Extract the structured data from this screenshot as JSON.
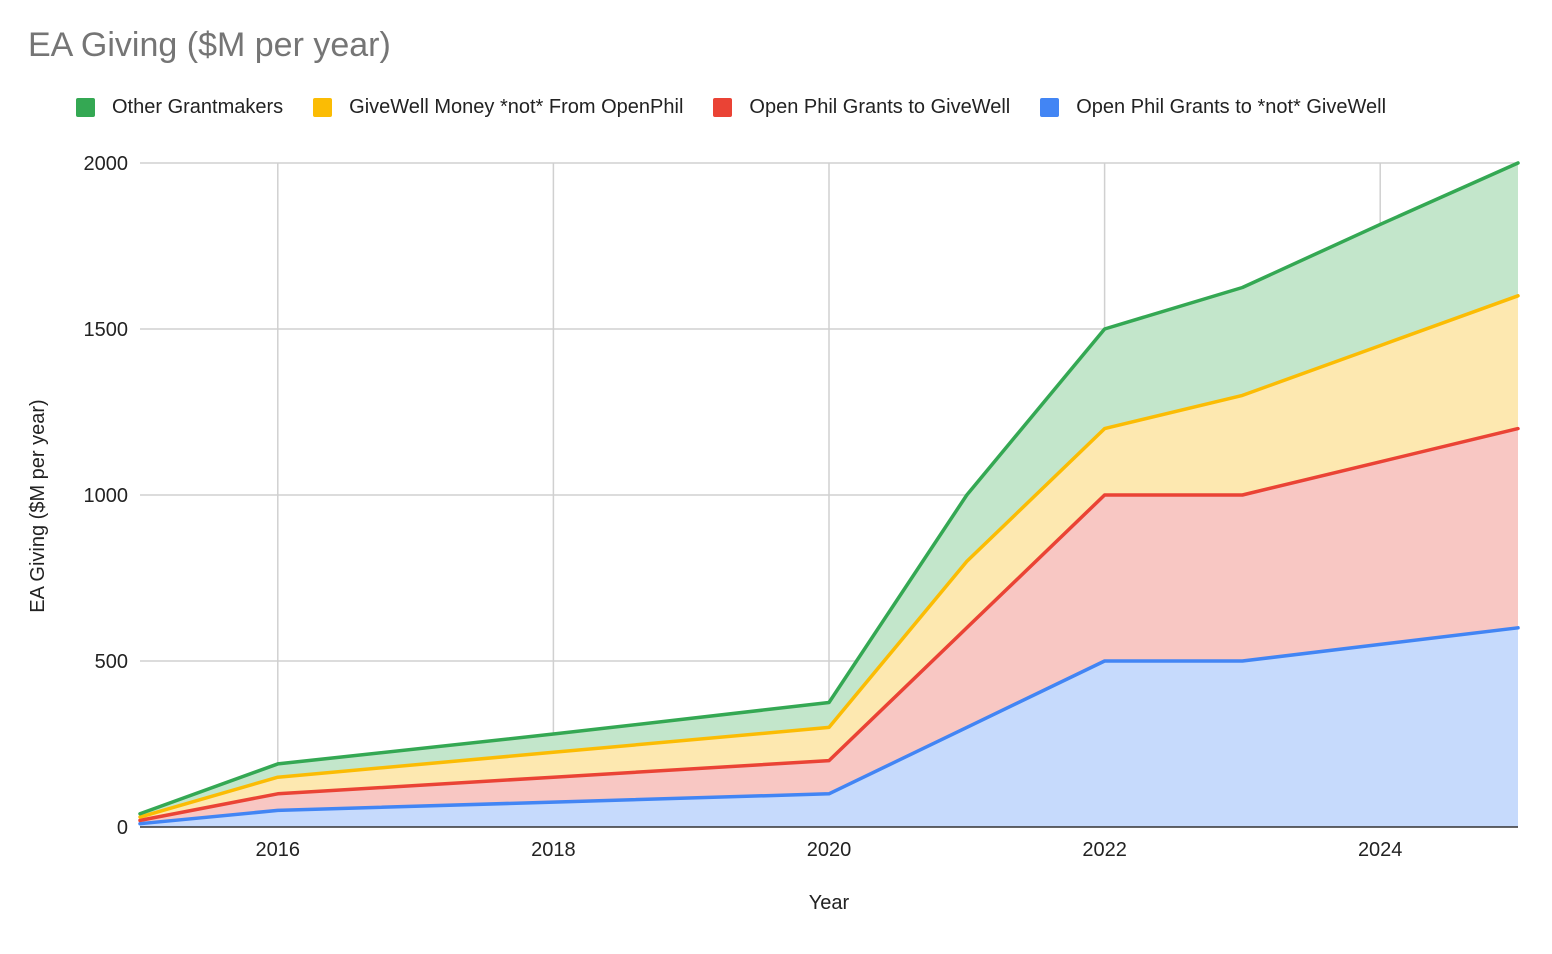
{
  "chart_data": {
    "type": "area",
    "stacked": true,
    "title": "EA Giving ($M per year)",
    "xlabel": "Year",
    "ylabel": "EA Giving ($M per year)",
    "xlim": [
      2015,
      2025
    ],
    "ylim": [
      0,
      2000
    ],
    "x_ticks": [
      2016,
      2018,
      2020,
      2022,
      2024
    ],
    "y_ticks": [
      0,
      500,
      1000,
      1500,
      2000
    ],
    "grid": true,
    "legend_position": "top",
    "x": [
      2015,
      2016,
      2018,
      2020,
      2021,
      2022,
      2023,
      2024,
      2025
    ],
    "series": [
      {
        "name": "Open Phil Grants to *not* GiveWell",
        "color": "#4285f4",
        "fill": "#c6dafc",
        "values": [
          10,
          50,
          75,
          100,
          300,
          500,
          500,
          550,
          600
        ]
      },
      {
        "name": "Open Phil Grants to GiveWell",
        "color": "#ea4335",
        "fill": "#f8c7c3",
        "values": [
          10,
          50,
          75,
          100,
          300,
          500,
          500,
          550,
          600
        ]
      },
      {
        "name": "GiveWell Money *not* From OpenPhil",
        "color": "#fbbc04",
        "fill": "#fde8b0",
        "values": [
          10,
          50,
          75,
          100,
          200,
          200,
          300,
          350,
          400
        ]
      },
      {
        "name": "Other Grantmakers",
        "color": "#34a853",
        "fill": "#c3e6cb",
        "values": [
          10,
          40,
          55,
          75,
          200,
          300,
          325,
          365,
          400
        ]
      }
    ],
    "legend_order": [
      "Other Grantmakers",
      "GiveWell Money *not* From OpenPhil",
      "Open Phil Grants to GiveWell",
      "Open Phil Grants to *not* GiveWell"
    ]
  }
}
